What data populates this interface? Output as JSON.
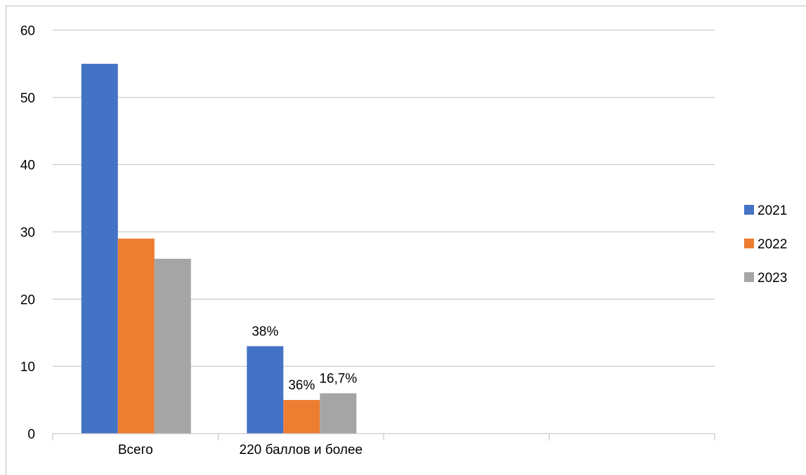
{
  "chart_data": {
    "type": "bar",
    "categories": [
      "Всего",
      "220 баллов и более",
      "",
      ""
    ],
    "series": [
      {
        "name": "2021",
        "color": "#4472C4",
        "values": [
          55,
          13,
          null,
          null
        ],
        "labels": [
          "",
          "38%",
          "",
          ""
        ]
      },
      {
        "name": "2022",
        "color": "#ED7D31",
        "values": [
          29,
          5,
          null,
          null
        ],
        "labels": [
          "",
          "36%",
          "",
          ""
        ]
      },
      {
        "name": "2023",
        "color": "#A5A5A5",
        "values": [
          26,
          6,
          null,
          null
        ],
        "labels": [
          "",
          "16,7%",
          "",
          ""
        ]
      }
    ],
    "yticks": [
      "0",
      "10",
      "20",
      "30",
      "40",
      "50",
      "60"
    ],
    "ylim": [
      0,
      60
    ],
    "grid": true,
    "legend_position": "right"
  }
}
